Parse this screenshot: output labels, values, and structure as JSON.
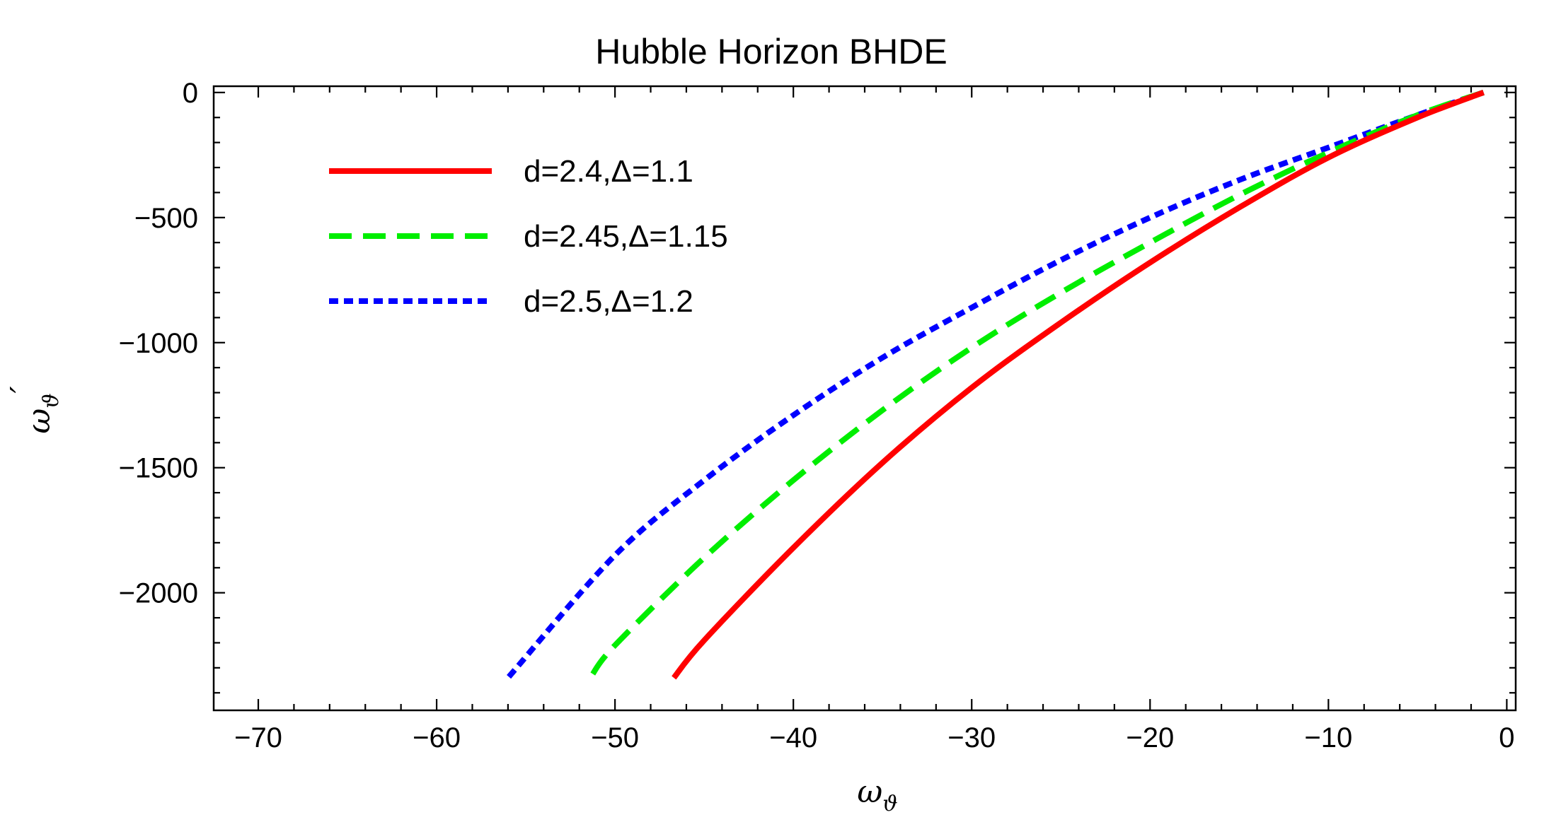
{
  "chart_data": {
    "type": "line",
    "title": "Hubble Horizon BHDE",
    "xlabel": "ω",
    "xlabel_sub": "ϑ",
    "ylabel": "ω",
    "ylabel_sub": "ϑ",
    "ylabel_prime": "′",
    "xlim": [
      -72.5,
      0.5
    ],
    "ylim": [
      -2470,
      25
    ],
    "x_ticks": [
      -70,
      -60,
      -50,
      -40,
      -30,
      -20,
      -10,
      0
    ],
    "x_tick_labels": [
      "−70",
      "−60",
      "−50",
      "−40",
      "−30",
      "−20",
      "−10",
      "0"
    ],
    "y_ticks": [
      0,
      -500,
      -1000,
      -1500,
      -2000
    ],
    "y_tick_labels": [
      "0",
      "−500",
      "−1000",
      "−1500",
      "−2000"
    ],
    "grid": false,
    "legend_position": "top-left",
    "series": [
      {
        "name": "d=2.4,Δ=1.1",
        "color": "#ff0000",
        "style": "solid",
        "x": [
          -1.3,
          -5,
          -10,
          -15,
          -20,
          -25,
          -30,
          -35,
          -40,
          -45,
          -46.7
        ],
        "y": [
          0,
          -100,
          -260,
          -460,
          -680,
          -920,
          -1180,
          -1480,
          -1820,
          -2190,
          -2340
        ]
      },
      {
        "name": "d=2.45,Δ=1.15",
        "color": "#00ee00",
        "style": "dashed",
        "x": [
          -1.3,
          -5,
          -10,
          -15,
          -20,
          -25,
          -30,
          -35,
          -40,
          -45,
          -50,
          -51.3
        ],
        "y": [
          0,
          -90,
          -240,
          -410,
          -600,
          -800,
          -1020,
          -1270,
          -1550,
          -1860,
          -2210,
          -2330
        ]
      },
      {
        "name": "d=2.5,Δ=1.2",
        "color": "#0000ff",
        "style": "dotted",
        "x": [
          -1.3,
          -5,
          -10,
          -15,
          -20,
          -25,
          -30,
          -35,
          -40,
          -45,
          -50,
          -56
        ],
        "y": [
          0,
          -90,
          -220,
          -350,
          -500,
          -670,
          -860,
          -1060,
          -1290,
          -1550,
          -1850,
          -2340
        ]
      }
    ]
  }
}
